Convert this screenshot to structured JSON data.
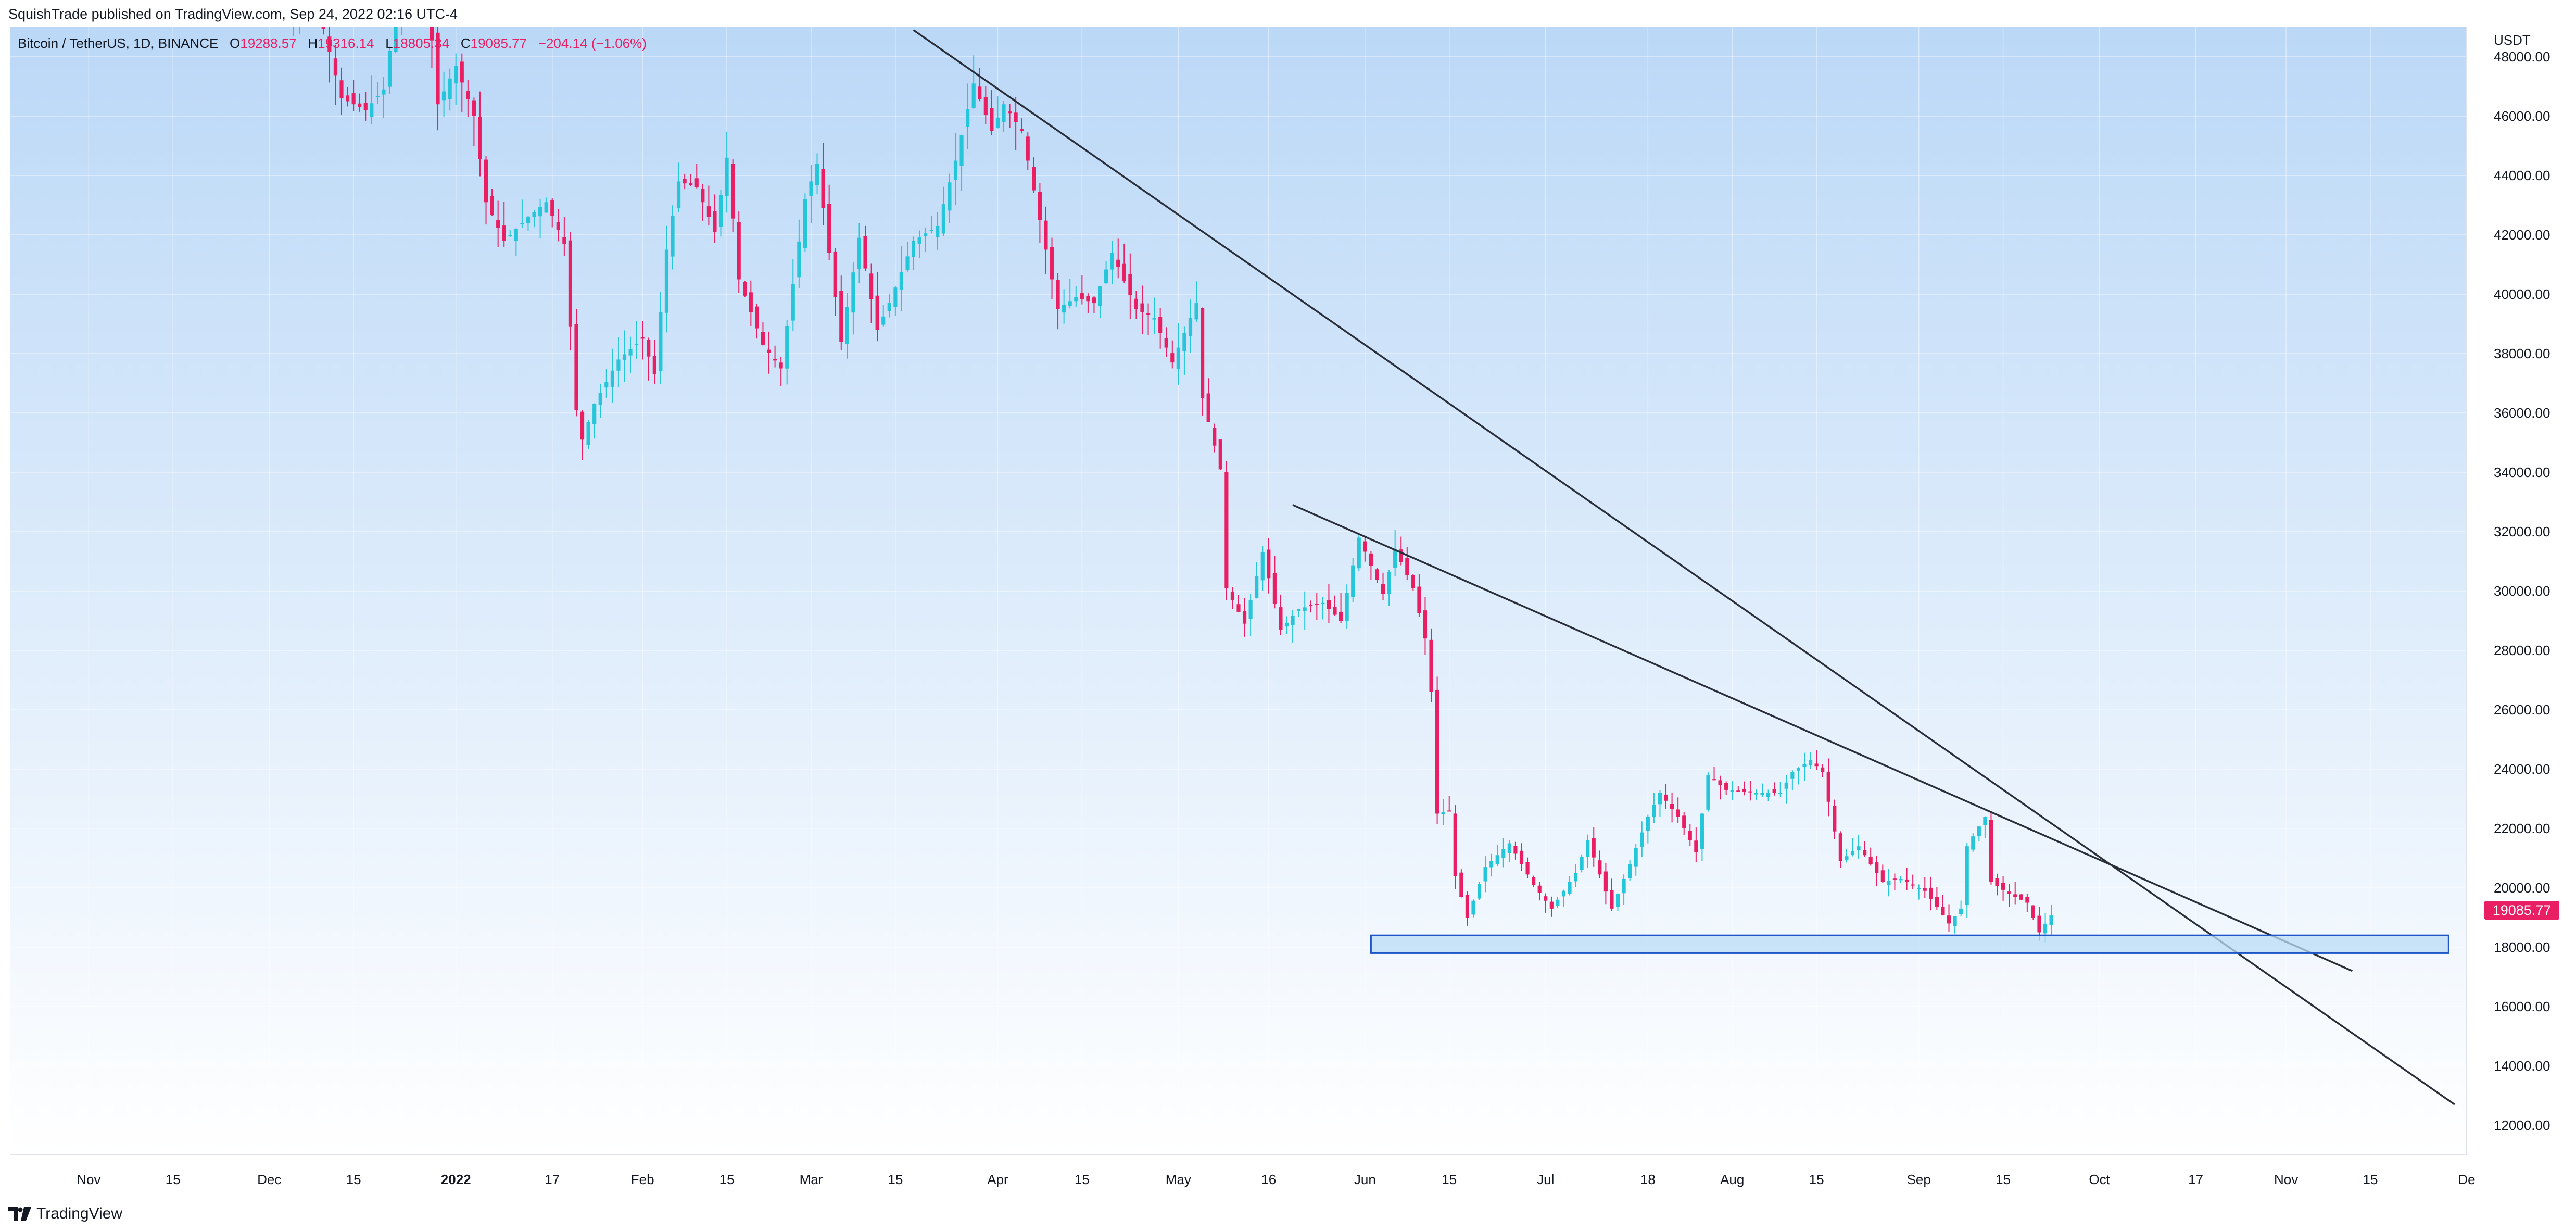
{
  "header": {
    "publisher": "SquishTrade published on TradingView.com, Sep 24, 2022 02:16 UTC-4"
  },
  "legend": {
    "symbol": "Bitcoin / TetherUS, 1D, BINANCE",
    "o_label": "O",
    "o": "19288.57",
    "h_label": "H",
    "h": "19316.14",
    "l_label": "L",
    "l": "18805.34",
    "c_label": "C",
    "c": "19085.77",
    "change": "−204.14 (−1.06%)"
  },
  "footer": {
    "brand": "TradingView"
  },
  "colors": {
    "up": "#26c6da",
    "down": "#e91e63",
    "bg_top": "#bbd8f7",
    "bg_bottom": "#ffffff",
    "zone_fill": "#b9dcf5",
    "zone_stroke": "#1e56c8",
    "line": "#2a2e39",
    "last_price": "#e91e63"
  },
  "chart_data": {
    "type": "candlestick",
    "currency": "USDT",
    "ylim": [
      11000,
      49000
    ],
    "y_ticks": [
      "12000.00",
      "14000.00",
      "16000.00",
      "18000.00",
      "20000.00",
      "22000.00",
      "24000.00",
      "26000.00",
      "28000.00",
      "30000.00",
      "32000.00",
      "34000.00",
      "36000.00",
      "38000.00",
      "40000.00",
      "42000.00",
      "44000.00",
      "46000.00",
      "48000.00"
    ],
    "x_range": [
      "2021-10-19",
      "2022-12-01"
    ],
    "x_ticks": [
      {
        "date": "2021-11-01",
        "label": "Nov"
      },
      {
        "date": "2021-11-15",
        "label": "15"
      },
      {
        "date": "2021-12-01",
        "label": "Dec"
      },
      {
        "date": "2021-12-15",
        "label": "15"
      },
      {
        "date": "2022-01-01",
        "label": "2022"
      },
      {
        "date": "2022-01-17",
        "label": "17"
      },
      {
        "date": "2022-02-01",
        "label": "Feb"
      },
      {
        "date": "2022-02-15",
        "label": "15"
      },
      {
        "date": "2022-03-01",
        "label": "Mar"
      },
      {
        "date": "2022-03-15",
        "label": "15"
      },
      {
        "date": "2022-04-01",
        "label": "Apr"
      },
      {
        "date": "2022-04-15",
        "label": "15"
      },
      {
        "date": "2022-05-01",
        "label": "May"
      },
      {
        "date": "2022-05-16",
        "label": "16"
      },
      {
        "date": "2022-06-01",
        "label": "Jun"
      },
      {
        "date": "2022-06-15",
        "label": "15"
      },
      {
        "date": "2022-07-01",
        "label": "Jul"
      },
      {
        "date": "2022-07-18",
        "label": "18"
      },
      {
        "date": "2022-08-01",
        "label": "Aug"
      },
      {
        "date": "2022-08-15",
        "label": "15"
      },
      {
        "date": "2022-09-01",
        "label": "Sep"
      },
      {
        "date": "2022-09-15",
        "label": "15"
      },
      {
        "date": "2022-10-01",
        "label": "Oct"
      },
      {
        "date": "2022-10-17",
        "label": "17"
      },
      {
        "date": "2022-11-01",
        "label": "Nov"
      },
      {
        "date": "2022-11-15",
        "label": "15"
      },
      {
        "date": "2022-12-01",
        "label": "De"
      }
    ],
    "last_price": "19085.77",
    "closes": [
      {
        "date": "2021-12-04",
        "close": 49400
      },
      {
        "date": "2021-12-08",
        "close": 50500
      },
      {
        "date": "2021-12-13",
        "close": 46600
      },
      {
        "date": "2021-12-17",
        "close": 46200
      },
      {
        "date": "2021-12-20",
        "close": 46900
      },
      {
        "date": "2021-12-23",
        "close": 50800
      },
      {
        "date": "2021-12-27",
        "close": 50700
      },
      {
        "date": "2021-12-29",
        "close": 46400
      },
      {
        "date": "2022-01-01",
        "close": 47700
      },
      {
        "date": "2022-01-04",
        "close": 46000
      },
      {
        "date": "2022-01-06",
        "close": 43100
      },
      {
        "date": "2022-01-09",
        "close": 41800
      },
      {
        "date": "2022-01-13",
        "close": 42600
      },
      {
        "date": "2022-01-16",
        "close": 43100
      },
      {
        "date": "2022-01-19",
        "close": 41700
      },
      {
        "date": "2022-01-21",
        "close": 36100
      },
      {
        "date": "2022-01-22",
        "close": 35100
      },
      {
        "date": "2022-01-24",
        "close": 36300
      },
      {
        "date": "2022-01-28",
        "close": 37800
      },
      {
        "date": "2022-02-01",
        "close": 38500
      },
      {
        "date": "2022-02-03",
        "close": 37300
      },
      {
        "date": "2022-02-05",
        "close": 41500
      },
      {
        "date": "2022-02-07",
        "close": 43800
      },
      {
        "date": "2022-02-10",
        "close": 43600
      },
      {
        "date": "2022-02-13",
        "close": 42100
      },
      {
        "date": "2022-02-15",
        "close": 44600
      },
      {
        "date": "2022-02-17",
        "close": 40500
      },
      {
        "date": "2022-02-21",
        "close": 38300
      },
      {
        "date": "2022-02-24",
        "close": 37500
      },
      {
        "date": "2022-02-28",
        "close": 43200
      },
      {
        "date": "2022-03-02",
        "close": 44400
      },
      {
        "date": "2022-03-06",
        "close": 38400
      },
      {
        "date": "2022-03-09",
        "close": 41900
      },
      {
        "date": "2022-03-12",
        "close": 38800
      },
      {
        "date": "2022-03-14",
        "close": 39700
      },
      {
        "date": "2022-03-18",
        "close": 41800
      },
      {
        "date": "2022-03-22",
        "close": 42300
      },
      {
        "date": "2022-03-25",
        "close": 44500
      },
      {
        "date": "2022-03-28",
        "close": 47100
      },
      {
        "date": "2022-03-31",
        "close": 45500
      },
      {
        "date": "2022-04-02",
        "close": 46400
      },
      {
        "date": "2022-04-05",
        "close": 45500
      },
      {
        "date": "2022-04-07",
        "close": 43500
      },
      {
        "date": "2022-04-11",
        "close": 39500
      },
      {
        "date": "2022-04-14",
        "close": 39900
      },
      {
        "date": "2022-04-17",
        "close": 39700
      },
      {
        "date": "2022-04-20",
        "close": 41400
      },
      {
        "date": "2022-04-24",
        "close": 39500
      },
      {
        "date": "2022-04-27",
        "close": 39200
      },
      {
        "date": "2022-04-30",
        "close": 37700
      },
      {
        "date": "2022-05-04",
        "close": 39700
      },
      {
        "date": "2022-05-05",
        "close": 36500
      },
      {
        "date": "2022-05-08",
        "close": 34100
      },
      {
        "date": "2022-05-09",
        "close": 30100
      },
      {
        "date": "2022-05-12",
        "close": 28900
      },
      {
        "date": "2022-05-15",
        "close": 31300
      },
      {
        "date": "2022-05-18",
        "close": 28700
      },
      {
        "date": "2022-05-21",
        "close": 29400
      },
      {
        "date": "2022-05-25",
        "close": 29600
      },
      {
        "date": "2022-05-28",
        "close": 29000
      },
      {
        "date": "2022-05-31",
        "close": 31800
      },
      {
        "date": "2022-06-04",
        "close": 29900
      },
      {
        "date": "2022-06-06",
        "close": 31400
      },
      {
        "date": "2022-06-09",
        "close": 30100
      },
      {
        "date": "2022-06-11",
        "close": 28400
      },
      {
        "date": "2022-06-12",
        "close": 26600
      },
      {
        "date": "2022-06-13",
        "close": 22500
      },
      {
        "date": "2022-06-15",
        "close": 22600
      },
      {
        "date": "2022-06-16",
        "close": 20400
      },
      {
        "date": "2022-06-18",
        "close": 19000
      },
      {
        "date": "2022-06-21",
        "close": 20700
      },
      {
        "date": "2022-06-25",
        "close": 21500
      },
      {
        "date": "2022-06-29",
        "close": 20100
      },
      {
        "date": "2022-07-02",
        "close": 19300
      },
      {
        "date": "2022-07-06",
        "close": 20500
      },
      {
        "date": "2022-07-08",
        "close": 21600
      },
      {
        "date": "2022-07-12",
        "close": 19300
      },
      {
        "date": "2022-07-15",
        "close": 20800
      },
      {
        "date": "2022-07-18",
        "close": 22400
      },
      {
        "date": "2022-07-20",
        "close": 23200
      },
      {
        "date": "2022-07-23",
        "close": 22400
      },
      {
        "date": "2022-07-26",
        "close": 21200
      },
      {
        "date": "2022-07-28",
        "close": 23800
      },
      {
        "date": "2022-07-31",
        "close": 23300
      },
      {
        "date": "2022-08-05",
        "close": 23200
      },
      {
        "date": "2022-08-09",
        "close": 23200
      },
      {
        "date": "2022-08-11",
        "close": 23900
      },
      {
        "date": "2022-08-14",
        "close": 24300
      },
      {
        "date": "2022-08-16",
        "close": 23900
      },
      {
        "date": "2022-08-19",
        "close": 20900
      },
      {
        "date": "2022-08-22",
        "close": 21400
      },
      {
        "date": "2022-08-26",
        "close": 20200
      },
      {
        "date": "2022-08-29",
        "close": 20300
      },
      {
        "date": "2022-09-02",
        "close": 19900
      },
      {
        "date": "2022-09-06",
        "close": 18800
      },
      {
        "date": "2022-09-08",
        "close": 19300
      },
      {
        "date": "2022-09-09",
        "close": 21400
      },
      {
        "date": "2022-09-12",
        "close": 22400
      },
      {
        "date": "2022-09-13",
        "close": 20200
      },
      {
        "date": "2022-09-16",
        "close": 19800
      },
      {
        "date": "2022-09-19",
        "close": 19500
      },
      {
        "date": "2022-09-21",
        "close": 18500
      },
      {
        "date": "2022-09-23",
        "close": 19085.77
      }
    ],
    "annotations": [
      {
        "type": "trendline",
        "from": {
          "date": "2022-03-18",
          "price": 48900
        },
        "to": {
          "date": "2022-11-29",
          "price": 12700
        }
      },
      {
        "type": "trendline",
        "from": {
          "date": "2022-05-20",
          "price": 32900
        },
        "to": {
          "date": "2022-11-12",
          "price": 17200
        }
      },
      {
        "type": "zone",
        "from": {
          "date": "2022-06-02",
          "price": 18400
        },
        "to": {
          "date": "2022-11-28",
          "price": 17800
        }
      }
    ]
  }
}
